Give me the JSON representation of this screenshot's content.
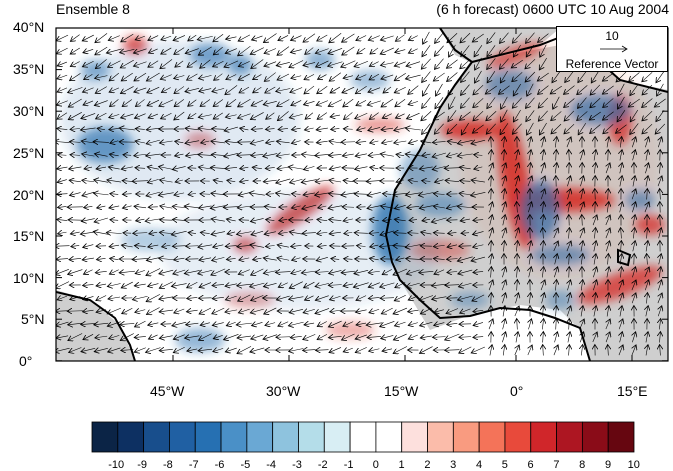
{
  "title_left": "Ensemble 8",
  "title_right": "(6 h forecast) 0600 UTC 10 Aug 2004",
  "reference_vector": {
    "magnitude": "10",
    "label": "Reference Vector"
  },
  "lat_labels": [
    "40°N",
    "35°N",
    "30°N",
    "25°N",
    "20°N",
    "15°N",
    "10°N",
    "5°N",
    "0°"
  ],
  "lon_labels": [
    "45°W",
    "30°W",
    "15°W",
    "0°",
    "15°E"
  ],
  "colorbar": {
    "labels": [
      "-10",
      "-9",
      "-8",
      "-7",
      "-6",
      "-5",
      "-4",
      "-3",
      "-2",
      "-1",
      "0",
      "1",
      "2",
      "3",
      "4",
      "5",
      "6",
      "7",
      "8",
      "9",
      "10"
    ],
    "colors": [
      "#0b2446",
      "#0d3062",
      "#184e8c",
      "#2060a3",
      "#2670b2",
      "#4a90c7",
      "#6aa8d4",
      "#8ec3de",
      "#b4dde9",
      "#d8eef4",
      "#ffffff",
      "#ffffff",
      "#fde0dd",
      "#fbbcaa",
      "#f99b80",
      "#f47359",
      "#e84a3b",
      "#d0262a",
      "#ad1622",
      "#8a0c18",
      "#660610"
    ]
  },
  "map": {
    "lon_range": [
      -56,
      19
    ],
    "lat_range": [
      0,
      40
    ],
    "land_color": "#cfcfcf",
    "positive_color": "#d6302b",
    "negative_color": "#2d72b0"
  }
}
